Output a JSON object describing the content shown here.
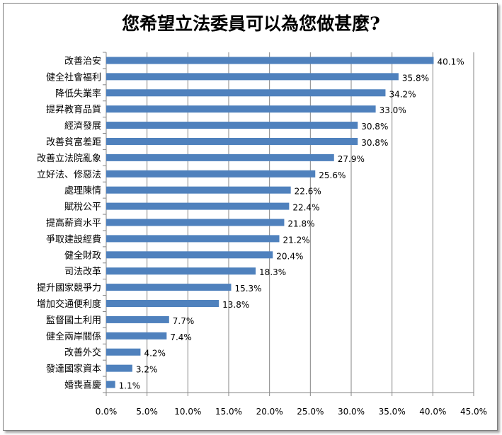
{
  "chart_data": {
    "type": "bar",
    "orientation": "horizontal",
    "title": "您希望立法委員可以為您做甚麼?",
    "xlabel": "",
    "ylabel": "",
    "xlim": [
      0,
      45
    ],
    "x_ticks": [
      "0.0%",
      "5.0%",
      "10.0%",
      "15.0%",
      "20.0%",
      "25.0%",
      "30.0%",
      "35.0%",
      "40.0%",
      "45.0%"
    ],
    "grid": true,
    "bar_color": "#4F81BD",
    "categories": [
      "改善治安",
      "健全社會福利",
      "降低失業率",
      "提昇教育品質",
      "經濟發展",
      "改善貧富差距",
      "改善立法院亂象",
      "立好法、修惡法",
      "處理陳情",
      "賦稅公平",
      "提高薪資水平",
      "爭取建設經費",
      "健全財政",
      "司法改革",
      "提升國家競爭力",
      "增加交通便利度",
      "監督國土利用",
      "健全兩岸關係",
      "改善外交",
      "發達國家資本",
      "婚喪喜慶"
    ],
    "values": [
      40.1,
      35.8,
      34.2,
      33.0,
      30.8,
      30.8,
      27.9,
      25.6,
      22.6,
      22.4,
      21.8,
      21.2,
      20.4,
      18.3,
      15.3,
      13.8,
      7.7,
      7.4,
      4.2,
      3.2,
      1.1
    ],
    "value_labels": [
      "40.1%",
      "35.8%",
      "34.2%",
      "33.0%",
      "30.8%",
      "30.8%",
      "27.9%",
      "25.6%",
      "22.6%",
      "22.4%",
      "21.8%",
      "21.2%",
      "20.4%",
      "18.3%",
      "15.3%",
      "13.8%",
      "7.7%",
      "7.4%",
      "4.2%",
      "3.2%",
      "1.1%"
    ]
  }
}
